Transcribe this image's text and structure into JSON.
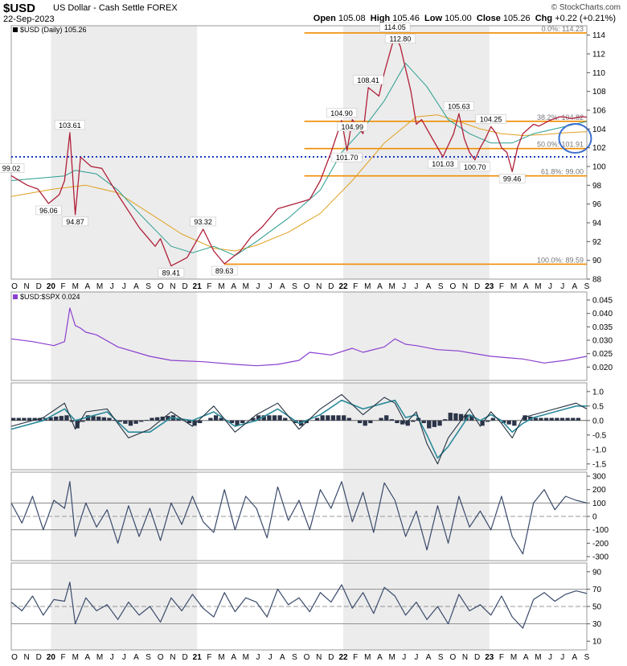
{
  "header": {
    "ticker": "$USD",
    "description": "US Dollar - Cash Settle",
    "exchange": "FOREX",
    "date": "22-Sep-2023",
    "watermark": "© StockCharts.com",
    "open_label": "Open",
    "open": "105.08",
    "high_label": "High",
    "high": "105.46",
    "low_label": "Low",
    "low": "105.00",
    "close_label": "Close",
    "close": "105.26",
    "chg_label": "Chg",
    "chg": "+0.22 (+0.21%)"
  },
  "colors": {
    "price": "#b0203a",
    "sma_fast": "#2a9d8f",
    "sma_slow": "#e0a020",
    "fib": "#f08c00",
    "dotted": "#1a3bbf",
    "ratio": "#8a3fcf",
    "indicator": "#3a4a6b",
    "band_shade": "#ececec"
  },
  "chart_data": [
    {
      "type": "line",
      "panel": "price",
      "legend": "$USD (Daily) 105.26",
      "ylim": [
        88,
        115
      ],
      "y_ticks": [
        88,
        90,
        92,
        94,
        96,
        98,
        100,
        102,
        104,
        106,
        108,
        110,
        112,
        114
      ],
      "x_labels": [
        "O",
        "N",
        "D",
        "20",
        "F",
        "M",
        "A",
        "M",
        "J",
        "J",
        "A",
        "S",
        "O",
        "N",
        "D",
        "21",
        "F",
        "M",
        "A",
        "M",
        "J",
        "J",
        "A",
        "S",
        "O",
        "N",
        "D",
        "22",
        "F",
        "M",
        "A",
        "M",
        "J",
        "J",
        "A",
        "S",
        "O",
        "N",
        "D",
        "23",
        "F",
        "M",
        "A",
        "M",
        "J",
        "J",
        "A",
        "S"
      ],
      "series": [
        {
          "role": "price",
          "x": [
            0,
            3,
            5,
            7,
            9,
            10,
            11,
            12,
            13,
            15,
            17,
            20,
            24,
            27,
            28,
            30,
            33,
            36,
            38,
            40,
            43,
            45,
            47,
            50,
            53,
            56,
            58,
            60,
            62,
            63,
            64,
            66,
            67,
            69,
            70,
            72,
            73,
            75,
            76,
            77,
            79,
            81,
            83,
            84,
            85,
            86,
            87,
            88,
            89,
            90,
            91,
            92,
            93,
            94,
            95,
            96,
            97,
            98,
            99,
            100,
            101,
            102,
            103,
            104,
            105,
            106,
            107,
            108
          ],
          "values": [
            99.02,
            98.0,
            97.6,
            96.06,
            97.0,
            98.5,
            103.61,
            94.87,
            101.0,
            100.0,
            99.8,
            97.0,
            93.5,
            91.5,
            92.3,
            89.41,
            90.3,
            93.32,
            91.0,
            89.63,
            91.0,
            92.5,
            93.5,
            95.5,
            96.0,
            96.5,
            98.5,
            101.5,
            104.9,
            101.7,
            104.99,
            103.5,
            108.41,
            107.5,
            110.0,
            114.05,
            112.8,
            108.0,
            104.5,
            105.0,
            103.0,
            101.03,
            103.5,
            105.63,
            103.0,
            101.5,
            100.7,
            102.0,
            103.0,
            104.25,
            103.5,
            102.0,
            101.5,
            99.46,
            102.0,
            103.5,
            104.0,
            104.5,
            104.3,
            104.6,
            104.9,
            105.1,
            105.3,
            105.26,
            105.1,
            105.2,
            105.3,
            105.26
          ]
        },
        {
          "role": "sma_fast",
          "x": [
            0,
            10,
            12,
            16,
            20,
            24,
            30,
            34,
            38,
            42,
            46,
            52,
            58,
            62,
            66,
            70,
            74,
            78,
            82,
            86,
            90,
            94,
            98,
            102,
            108
          ],
          "values": [
            98.5,
            99.0,
            99.6,
            99.2,
            97.5,
            95.0,
            91.5,
            90.8,
            91.5,
            90.5,
            92.0,
            94.5,
            97.5,
            101.5,
            104.0,
            107.0,
            111.0,
            108.5,
            105.0,
            103.5,
            102.5,
            102.5,
            103.5,
            104.0,
            104.8
          ]
        },
        {
          "role": "sma_slow",
          "x": [
            0,
            8,
            14,
            20,
            26,
            32,
            38,
            42,
            46,
            52,
            58,
            64,
            70,
            76,
            80,
            84,
            88,
            92,
            96,
            100,
            104,
            108
          ],
          "values": [
            96.8,
            97.6,
            98.0,
            97.2,
            95.0,
            92.8,
            91.3,
            91.0,
            91.6,
            93.0,
            95.0,
            98.5,
            102.5,
            105.3,
            105.5,
            104.8,
            104.0,
            103.5,
            103.3,
            103.4,
            103.6,
            103.7
          ]
        }
      ],
      "data_labels": [
        {
          "x": 0,
          "y": 99.02,
          "text": "99.02"
        },
        {
          "x": 7,
          "y": 96.06,
          "text": "96.06"
        },
        {
          "x": 11,
          "y": 103.61,
          "text": "103.61"
        },
        {
          "x": 12,
          "y": 94.87,
          "text": "94.87"
        },
        {
          "x": 30,
          "y": 89.41,
          "text": "89.41"
        },
        {
          "x": 36,
          "y": 93.32,
          "text": "93.32"
        },
        {
          "x": 40,
          "y": 89.63,
          "text": "89.63"
        },
        {
          "x": 62,
          "y": 104.9,
          "text": "104.90"
        },
        {
          "x": 63,
          "y": 101.7,
          "text": "101.70"
        },
        {
          "x": 64,
          "y": 104.99,
          "text": "104.99"
        },
        {
          "x": 67,
          "y": 108.41,
          "text": "108.41"
        },
        {
          "x": 72,
          "y": 114.05,
          "text": "114.05"
        },
        {
          "x": 73,
          "y": 112.8,
          "text": "112.80"
        },
        {
          "x": 81,
          "y": 101.03,
          "text": "101.03"
        },
        {
          "x": 84,
          "y": 105.63,
          "text": "105.63"
        },
        {
          "x": 87,
          "y": 100.7,
          "text": "100.70"
        },
        {
          "x": 90,
          "y": 104.25,
          "text": "104.25"
        },
        {
          "x": 94,
          "y": 99.46,
          "text": "99.46"
        }
      ],
      "fib_levels": [
        {
          "value": 114.23,
          "label": "0.0%: 114.23"
        },
        {
          "value": 104.82,
          "label": "38.2%: 104.82"
        },
        {
          "value": 101.91,
          "label": "50.0%: 101.91"
        },
        {
          "value": 99.0,
          "label": "61.8%: 99.00"
        },
        {
          "value": 89.59,
          "label": "100.0%: 89.59"
        }
      ],
      "dotted_level": 101.03
    },
    {
      "type": "line",
      "panel": "ratio",
      "legend": "$USD:$SPX 0.024",
      "ylim": [
        0.015,
        0.048
      ],
      "y_ticks": [
        0.02,
        0.025,
        0.03,
        0.035,
        0.04,
        0.045
      ],
      "series": [
        {
          "role": "ratio",
          "x": [
            0,
            4,
            8,
            10,
            11,
            12,
            13,
            14,
            16,
            20,
            26,
            30,
            36,
            42,
            46,
            50,
            54,
            56,
            60,
            64,
            66,
            70,
            72,
            74,
            76,
            80,
            84,
            90,
            96,
            100,
            104,
            108
          ],
          "values": [
            0.0305,
            0.0295,
            0.028,
            0.0295,
            0.042,
            0.0355,
            0.0345,
            0.033,
            0.032,
            0.0275,
            0.024,
            0.0225,
            0.022,
            0.021,
            0.0205,
            0.021,
            0.0225,
            0.0255,
            0.0245,
            0.027,
            0.0255,
            0.0275,
            0.0305,
            0.0285,
            0.028,
            0.0265,
            0.026,
            0.024,
            0.023,
            0.0215,
            0.0225,
            0.024
          ]
        }
      ]
    },
    {
      "type": "line",
      "panel": "oscillator",
      "ylim": [
        -1.7,
        1.3
      ],
      "y_ticks": [
        -1.5,
        -1.0,
        -0.5,
        0.0,
        0.5,
        1.0
      ],
      "series": [
        {
          "role": "fast",
          "x": [
            0,
            6,
            10,
            12,
            14,
            18,
            22,
            26,
            30,
            34,
            38,
            42,
            46,
            50,
            54,
            58,
            62,
            66,
            70,
            72,
            74,
            76,
            78,
            80,
            82,
            86,
            88,
            90,
            92,
            94,
            96,
            98,
            100,
            102,
            104,
            106,
            108
          ],
          "values": [
            -0.2,
            0.1,
            0.6,
            -0.3,
            0.3,
            0.4,
            -0.6,
            -0.3,
            0.3,
            -0.2,
            0.5,
            -0.4,
            0.2,
            0.6,
            -0.3,
            0.4,
            0.9,
            0.2,
            0.8,
            0.6,
            -0.1,
            0.3,
            -0.8,
            -1.5,
            -0.6,
            0.4,
            -0.2,
            0.3,
            -0.1,
            -0.6,
            0.1,
            0.2,
            0.3,
            0.4,
            0.5,
            0.6,
            0.4
          ]
        },
        {
          "role": "slow",
          "x": [
            0,
            6,
            10,
            12,
            14,
            18,
            22,
            26,
            30,
            34,
            38,
            42,
            46,
            50,
            54,
            58,
            62,
            66,
            70,
            72,
            74,
            76,
            78,
            80,
            82,
            86,
            88,
            90,
            92,
            94,
            96,
            98,
            100,
            102,
            104,
            106,
            108
          ],
          "values": [
            -0.3,
            0.0,
            0.4,
            0.0,
            0.1,
            0.3,
            -0.4,
            -0.4,
            0.1,
            0.0,
            0.3,
            -0.2,
            0.0,
            0.4,
            -0.1,
            0.2,
            0.7,
            0.4,
            0.6,
            0.7,
            0.1,
            0.2,
            -0.5,
            -1.3,
            -0.9,
            0.2,
            0.0,
            0.2,
            0.0,
            -0.4,
            -0.1,
            0.1,
            0.2,
            0.3,
            0.4,
            0.5,
            0.5
          ]
        }
      ]
    },
    {
      "type": "line",
      "panel": "cci",
      "ylim": [
        -330,
        330
      ],
      "y_ticks": [
        -300,
        -200,
        -100,
        0,
        100,
        200,
        300
      ],
      "reference_lines": [
        100,
        -100
      ],
      "series": [
        {
          "role": "cci",
          "x": [
            0,
            2,
            4,
            6,
            8,
            10,
            11,
            12,
            14,
            16,
            18,
            20,
            22,
            24,
            26,
            28,
            30,
            32,
            34,
            36,
            38,
            40,
            42,
            44,
            46,
            48,
            50,
            52,
            54,
            56,
            58,
            60,
            62,
            64,
            66,
            68,
            70,
            72,
            74,
            76,
            78,
            80,
            82,
            84,
            86,
            88,
            90,
            92,
            94,
            96,
            98,
            100,
            102,
            104,
            106,
            108
          ],
          "values": [
            100,
            -50,
            150,
            -100,
            120,
            60,
            260,
            -150,
            100,
            -80,
            50,
            -200,
            80,
            -150,
            60,
            -180,
            100,
            -60,
            150,
            -40,
            -120,
            200,
            -100,
            150,
            60,
            -160,
            220,
            -30,
            120,
            -100,
            200,
            60,
            260,
            -40,
            180,
            -120,
            250,
            120,
            -150,
            40,
            -250,
            80,
            -200,
            150,
            -80,
            40,
            -100,
            150,
            -150,
            -280,
            100,
            200,
            50,
            150,
            120,
            100
          ]
        }
      ]
    },
    {
      "type": "line",
      "panel": "rsi",
      "ylim": [
        0,
        100
      ],
      "y_ticks": [
        10,
        30,
        50,
        70,
        90
      ],
      "reference_lines": [
        70,
        50,
        30
      ],
      "series": [
        {
          "role": "rsi",
          "x": [
            0,
            2,
            4,
            6,
            8,
            10,
            11,
            12,
            14,
            16,
            18,
            20,
            22,
            24,
            26,
            28,
            30,
            32,
            34,
            36,
            38,
            40,
            42,
            44,
            46,
            48,
            50,
            52,
            54,
            56,
            58,
            60,
            62,
            64,
            66,
            68,
            70,
            72,
            74,
            76,
            78,
            80,
            82,
            84,
            86,
            88,
            90,
            92,
            94,
            96,
            98,
            100,
            102,
            104,
            106,
            108
          ],
          "values": [
            55,
            45,
            62,
            40,
            58,
            56,
            78,
            30,
            60,
            45,
            52,
            35,
            55,
            40,
            50,
            32,
            60,
            45,
            64,
            48,
            38,
            66,
            44,
            60,
            55,
            38,
            70,
            52,
            60,
            44,
            66,
            55,
            75,
            48,
            66,
            42,
            72,
            62,
            40,
            55,
            35,
            50,
            30,
            64,
            45,
            52,
            40,
            62,
            38,
            25,
            58,
            66,
            56,
            64,
            68,
            65
          ]
        }
      ]
    }
  ]
}
